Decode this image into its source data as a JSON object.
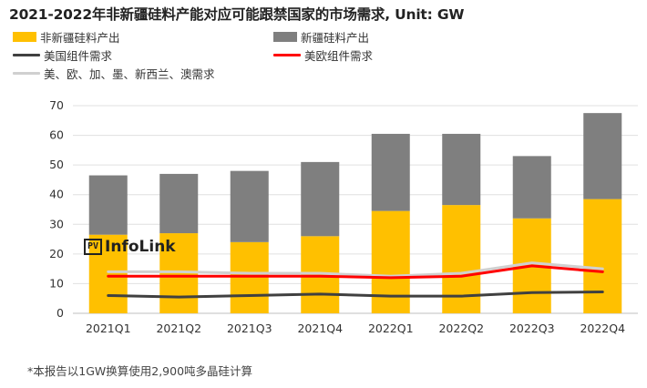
{
  "title": "2021-2022年非新疆硅料产能对应可能跟禁国家的市场需求, Unit: GW",
  "footnote": "*本报告以1GW换算使用2,900吨多晶硅计算",
  "watermark": {
    "box": "PV",
    "text": "InfoLink"
  },
  "legend": [
    {
      "label": "非新疆硅料产出",
      "kind": "box",
      "color": "#FFC000"
    },
    {
      "label": "新疆硅料产出",
      "kind": "box",
      "color": "#7F7F7F"
    },
    {
      "label": "美国组件需求",
      "kind": "line",
      "color": "#404040"
    },
    {
      "label": "美欧组件需求",
      "kind": "line",
      "color": "#FF0000"
    },
    {
      "label": "美、欧、加、墨、新西兰、澳需求",
      "kind": "line",
      "color": "#D0D0D0"
    }
  ],
  "chart_data": {
    "type": "bar",
    "stacked": true,
    "categories": [
      "2021Q1",
      "2021Q2",
      "2021Q3",
      "2021Q4",
      "2022Q1",
      "2022Q2",
      "2022Q3",
      "2022Q4"
    ],
    "ylim": [
      0,
      70
    ],
    "yticks": [
      0,
      10,
      20,
      30,
      40,
      50,
      60,
      70
    ],
    "grid": true,
    "legend_position": "top",
    "series": [
      {
        "name": "非新疆硅料产出",
        "type": "bar",
        "color": "#FFC000",
        "values": [
          26.5,
          27,
          24,
          26,
          34.5,
          36.5,
          32,
          38.5
        ]
      },
      {
        "name": "新疆硅料产出",
        "type": "bar",
        "color": "#7F7F7F",
        "values": [
          20,
          20,
          24,
          25,
          26,
          24,
          21,
          29
        ]
      },
      {
        "name": "美国组件需求",
        "type": "line",
        "color": "#404040",
        "values": [
          6,
          5.5,
          6,
          6.5,
          5.8,
          5.8,
          7,
          7.2
        ]
      },
      {
        "name": "美欧组件需求",
        "type": "line",
        "color": "#FF0000",
        "values": [
          12.5,
          12.5,
          12.5,
          12.5,
          12,
          12.5,
          16,
          14
        ]
      },
      {
        "name": "美、欧、加、墨、新西兰、澳需求",
        "type": "line",
        "color": "#D0D0D0",
        "values": [
          14,
          14,
          13.5,
          13.5,
          12.5,
          13.5,
          17,
          15
        ]
      }
    ]
  }
}
